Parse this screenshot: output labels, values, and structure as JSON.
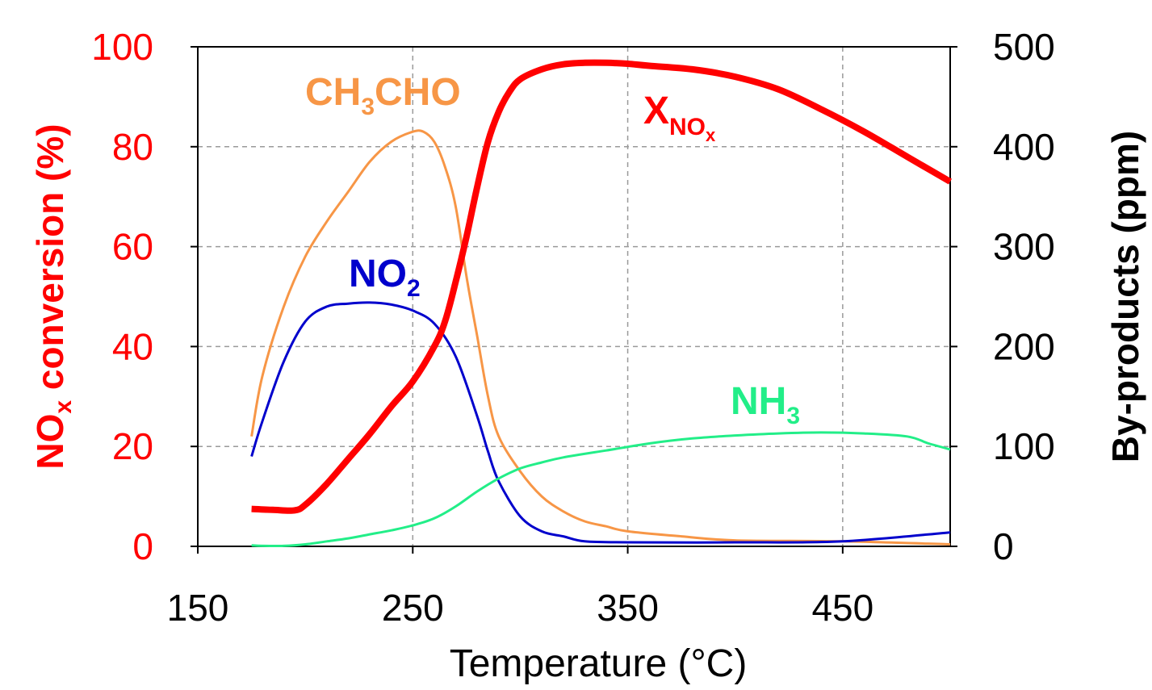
{
  "chart_data": {
    "type": "line",
    "xlabel": "Temperature (°C)",
    "ylabel_left": {
      "base": "NO",
      "sub": "x",
      "rest": " conversion (%)"
    },
    "ylabel_right": "By-products (ppm)",
    "xlim": [
      150,
      500
    ],
    "ylim_left": [
      0,
      100
    ],
    "ylim_right": [
      0,
      500
    ],
    "x_ticks": [
      "150",
      "250",
      "350",
      "450"
    ],
    "y_left_ticks": [
      "0",
      "20",
      "40",
      "60",
      "80",
      "100"
    ],
    "y_right_ticks": [
      "0",
      "100",
      "200",
      "300",
      "400",
      "500"
    ],
    "grid": true,
    "colors": {
      "xnox": "#ff0000",
      "ch3cho": "#f79646",
      "no2": "#0000cc",
      "nh3": "#22ee88",
      "axis_left": "#ff0000",
      "axis_right": "#000000"
    },
    "series": [
      {
        "key": "xnox",
        "axis": "left",
        "label": {
          "base": "X",
          "sub": "NO",
          "subsub": "x"
        },
        "x": [
          175,
          185,
          195,
          200,
          210,
          220,
          230,
          240,
          250,
          260,
          265,
          270,
          275,
          280,
          285,
          290,
          295,
          300,
          310,
          320,
          330,
          340,
          350,
          360,
          380,
          400,
          420,
          440,
          460,
          480,
          500
        ],
        "y": [
          7.5,
          7.3,
          7.2,
          8.3,
          12.5,
          17.5,
          22.5,
          28,
          33,
          40,
          45,
          53,
          62,
          72,
          81,
          87,
          91,
          93.5,
          95.5,
          96.5,
          96.8,
          96.8,
          96.6,
          96.2,
          95.5,
          94,
          91.5,
          87.5,
          83,
          78,
          73
        ]
      },
      {
        "key": "ch3cho",
        "axis": "right",
        "label": {
          "base": "CH",
          "sub": "3",
          "rest": "CHO"
        },
        "x": [
          175,
          180,
          190,
          200,
          210,
          220,
          230,
          240,
          250,
          255,
          260,
          265,
          270,
          275,
          280,
          285,
          290,
          300,
          310,
          320,
          330,
          340,
          350,
          375,
          400,
          450,
          500
        ],
        "y": [
          110,
          170,
          240,
          290,
          325,
          355,
          385,
          405,
          415,
          415,
          405,
          380,
          340,
          270,
          210,
          150,
          110,
          75,
          50,
          35,
          25,
          20,
          15,
          10,
          6,
          5,
          2
        ]
      },
      {
        "key": "no2",
        "axis": "right",
        "label": {
          "base": "NO",
          "sub": "2"
        },
        "x": [
          175,
          180,
          190,
          200,
          210,
          220,
          230,
          240,
          250,
          260,
          270,
          280,
          285,
          290,
          300,
          310,
          320,
          330,
          350,
          400,
          450,
          500
        ],
        "y": [
          90,
          125,
          185,
          225,
          240,
          243,
          244,
          242,
          236,
          223,
          190,
          130,
          95,
          65,
          30,
          15,
          10,
          5,
          4,
          4,
          5,
          14
        ]
      },
      {
        "key": "nh3",
        "axis": "right",
        "label": {
          "base": "NH",
          "sub": "3"
        },
        "x": [
          175,
          180,
          190,
          200,
          210,
          220,
          230,
          240,
          250,
          260,
          270,
          280,
          290,
          300,
          310,
          320,
          340,
          360,
          380,
          400,
          420,
          440,
          460,
          480,
          490,
          500
        ],
        "y": [
          1,
          0.5,
          0.5,
          2,
          5,
          8,
          12,
          16,
          21,
          28,
          40,
          55,
          68,
          78,
          84,
          89,
          96,
          103,
          108,
          111,
          113,
          114,
          113,
          110,
          103,
          97
        ]
      }
    ]
  }
}
